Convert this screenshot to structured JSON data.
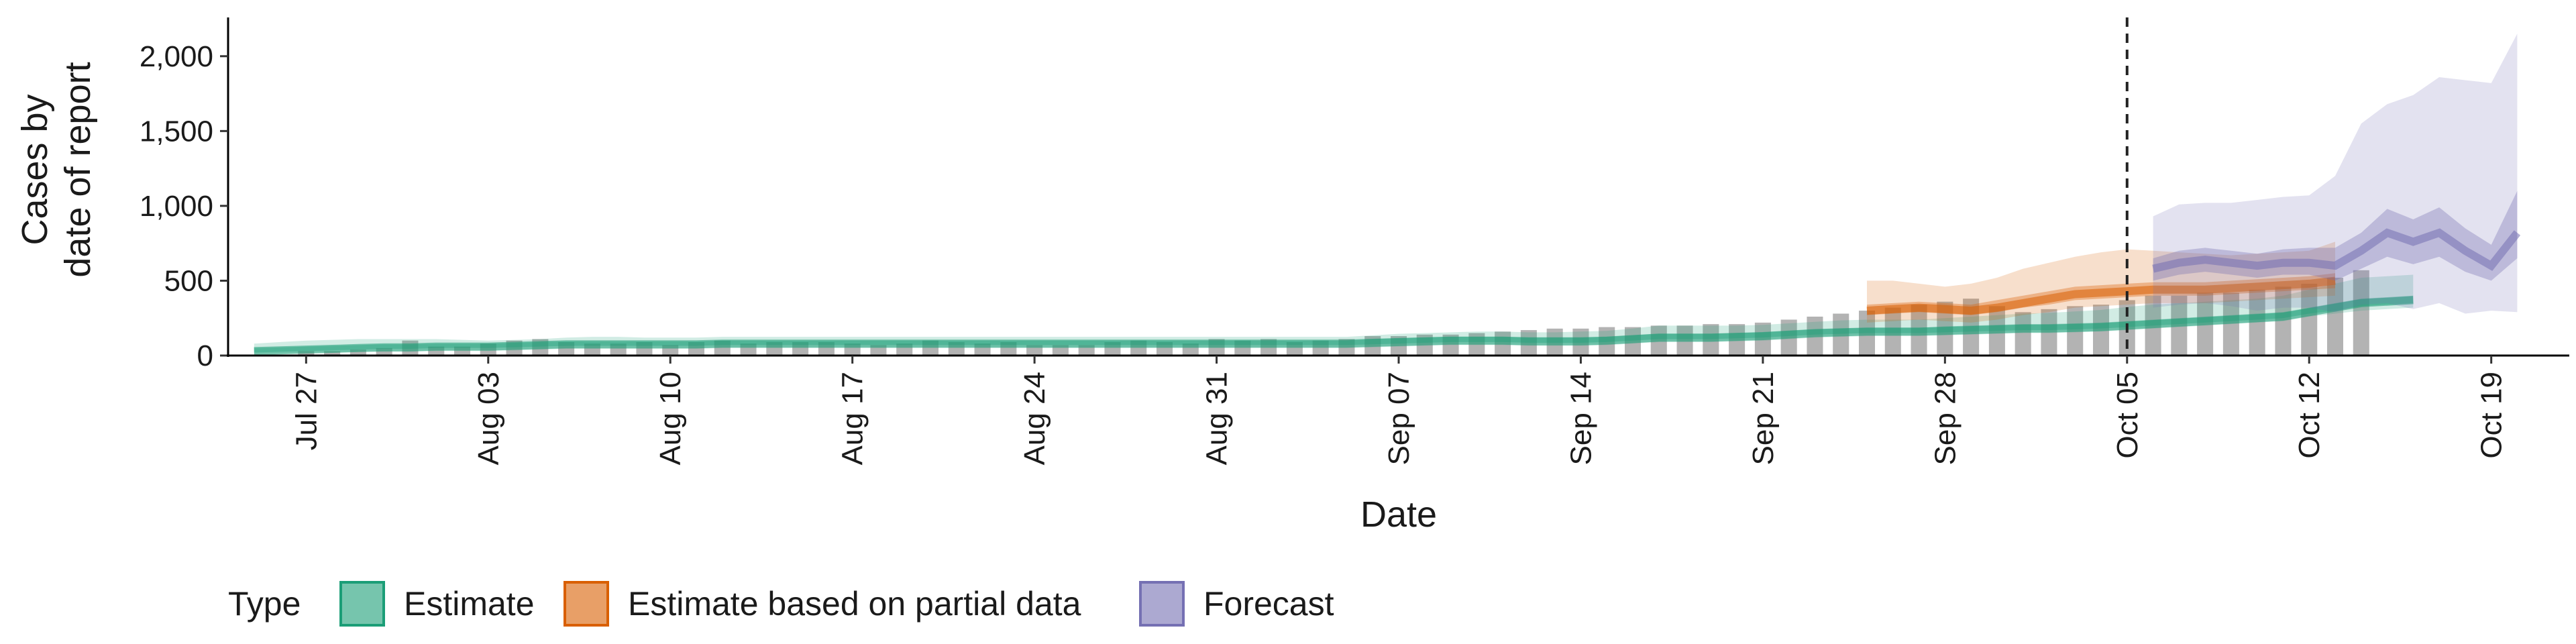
{
  "chart_data": {
    "type": "area",
    "xlabel": "Date",
    "ylabel_lines": [
      "Cases by",
      "date of report"
    ],
    "ylim": [
      0,
      2250
    ],
    "y_ticks": [
      0,
      500,
      1000,
      1500,
      2000
    ],
    "y_tick_labels": [
      "0",
      "500",
      "1,000",
      "1,500",
      "2,000"
    ],
    "x_range": [
      "2020-07-24",
      "2020-10-22"
    ],
    "x_ticks": [
      "2020-07-27",
      "2020-08-03",
      "2020-08-10",
      "2020-08-17",
      "2020-08-24",
      "2020-08-31",
      "2020-09-07",
      "2020-09-14",
      "2020-09-21",
      "2020-09-28",
      "2020-10-05",
      "2020-10-12",
      "2020-10-19"
    ],
    "x_tick_labels": [
      "Jul 27",
      "Aug 03",
      "Aug 10",
      "Aug 17",
      "Aug 24",
      "Aug 31",
      "Sep 07",
      "Sep 14",
      "Sep 21",
      "Sep 28",
      "Oct 05",
      "Oct 12",
      "Oct 19"
    ],
    "reference_line_date": "2020-10-05",
    "grid": false,
    "legend": {
      "position": "bottom",
      "title": "Type",
      "entries": [
        {
          "label": "Estimate",
          "color": "#1b9e77"
        },
        {
          "label": "Estimate based on partial data",
          "color": "#d95f02"
        },
        {
          "label": "Forecast",
          "color": "#7570b3"
        }
      ]
    },
    "reported_cases": {
      "start_date": "2020-07-27",
      "color": "#b3b3b3",
      "values": [
        30,
        30,
        40,
        50,
        100,
        60,
        60,
        80,
        100,
        110,
        90,
        80,
        80,
        90,
        70,
        90,
        100,
        80,
        90,
        90,
        90,
        80,
        70,
        80,
        100,
        90,
        80,
        90,
        70,
        70,
        70,
        90,
        100,
        90,
        80,
        110,
        100,
        110,
        90,
        100,
        110,
        130,
        130,
        140,
        140,
        150,
        160,
        170,
        180,
        180,
        190,
        190,
        200,
        200,
        210,
        210,
        220,
        240,
        260,
        280,
        300,
        320,
        340,
        360,
        380,
        330,
        290,
        310,
        330,
        340,
        370,
        400,
        400,
        420,
        420,
        440,
        460,
        480,
        520,
        570
      ]
    },
    "series": [
      {
        "name": "Estimate",
        "color": "#1b9e77",
        "start_date": "2020-07-25",
        "median": [
          30,
          35,
          40,
          45,
          50,
          55,
          55,
          60,
          60,
          60,
          65,
          70,
          75,
          75,
          75,
          75,
          75,
          75,
          80,
          80,
          80,
          80,
          80,
          80,
          80,
          80,
          80,
          80,
          80,
          80,
          80,
          80,
          80,
          80,
          80,
          80,
          80,
          80,
          80,
          80,
          80,
          80,
          80,
          85,
          90,
          95,
          100,
          100,
          100,
          95,
          95,
          95,
          100,
          110,
          120,
          120,
          120,
          125,
          130,
          140,
          150,
          155,
          160,
          160,
          160,
          165,
          170,
          175,
          180,
          180,
          185,
          190,
          200,
          210,
          220,
          230,
          240,
          250,
          260,
          290,
          320,
          350,
          360,
          370
        ],
        "lower_50": [
          20,
          25,
          30,
          35,
          40,
          45,
          45,
          50,
          50,
          50,
          55,
          60,
          65,
          65,
          65,
          65,
          65,
          65,
          70,
          70,
          70,
          70,
          70,
          70,
          70,
          70,
          70,
          70,
          70,
          70,
          70,
          70,
          70,
          70,
          70,
          70,
          70,
          70,
          70,
          70,
          70,
          70,
          70,
          75,
          80,
          85,
          90,
          90,
          90,
          85,
          85,
          85,
          90,
          100,
          110,
          110,
          110,
          115,
          120,
          130,
          140,
          145,
          150,
          150,
          150,
          155,
          160,
          165,
          170,
          170,
          175,
          180,
          190,
          200,
          210,
          220,
          230,
          240,
          250,
          280,
          300,
          330,
          340,
          350
        ],
        "upper_50": [
          50,
          55,
          60,
          65,
          70,
          75,
          75,
          80,
          80,
          80,
          85,
          90,
          95,
          95,
          95,
          95,
          95,
          95,
          100,
          100,
          100,
          100,
          100,
          100,
          100,
          100,
          100,
          100,
          100,
          100,
          100,
          100,
          100,
          100,
          100,
          100,
          100,
          100,
          100,
          100,
          100,
          100,
          100,
          110,
          115,
          120,
          125,
          125,
          125,
          120,
          120,
          120,
          125,
          135,
          145,
          145,
          145,
          150,
          155,
          165,
          175,
          180,
          185,
          185,
          185,
          195,
          200,
          205,
          210,
          210,
          215,
          220,
          230,
          240,
          250,
          260,
          270,
          280,
          290,
          320,
          350,
          380,
          390,
          400
        ],
        "lower_90": [
          10,
          15,
          20,
          20,
          25,
          25,
          25,
          30,
          30,
          30,
          35,
          40,
          45,
          45,
          45,
          45,
          45,
          45,
          50,
          50,
          50,
          50,
          50,
          50,
          50,
          50,
          50,
          50,
          50,
          50,
          50,
          50,
          50,
          50,
          50,
          50,
          50,
          50,
          50,
          50,
          50,
          50,
          50,
          55,
          60,
          65,
          70,
          70,
          70,
          65,
          65,
          65,
          70,
          80,
          90,
          90,
          90,
          95,
          100,
          110,
          120,
          125,
          130,
          130,
          130,
          135,
          140,
          145,
          150,
          150,
          155,
          160,
          170,
          180,
          190,
          200,
          210,
          220,
          230,
          260,
          280,
          300,
          310,
          320
        ],
        "upper_90": [
          80,
          90,
          100,
          105,
          110,
          110,
          110,
          110,
          105,
          100,
          105,
          110,
          120,
          125,
          125,
          120,
          120,
          120,
          125,
          125,
          125,
          125,
          125,
          125,
          125,
          125,
          125,
          125,
          125,
          125,
          125,
          125,
          125,
          125,
          125,
          125,
          125,
          125,
          125,
          125,
          125,
          125,
          125,
          135,
          145,
          150,
          155,
          160,
          160,
          155,
          155,
          160,
          165,
          180,
          200,
          200,
          200,
          200,
          205,
          215,
          225,
          235,
          240,
          240,
          240,
          250,
          260,
          270,
          280,
          285,
          295,
          305,
          325,
          340,
          350,
          360,
          370,
          380,
          400,
          440,
          480,
          520,
          530,
          540
        ]
      },
      {
        "name": "Estimate based on partial data",
        "color": "#d95f02",
        "start_date": "2020-09-25",
        "median": [
          300,
          310,
          320,
          310,
          300,
          320,
          350,
          380,
          410,
          420,
          430,
          440,
          440,
          440,
          450,
          460,
          470,
          480,
          500
        ],
        "lower_50": [
          270,
          280,
          290,
          280,
          270,
          290,
          320,
          340,
          370,
          380,
          390,
          400,
          400,
          400,
          410,
          420,
          430,
          440,
          450
        ],
        "upper_50": [
          340,
          350,
          360,
          350,
          340,
          370,
          400,
          430,
          460,
          470,
          480,
          490,
          490,
          490,
          500,
          510,
          520,
          530,
          550
        ],
        "lower_90": [
          220,
          230,
          240,
          230,
          220,
          240,
          270,
          290,
          320,
          330,
          340,
          350,
          350,
          350,
          360,
          370,
          380,
          390,
          400
        ],
        "upper_90": [
          500,
          500,
          480,
          460,
          480,
          520,
          580,
          620,
          660,
          690,
          710,
          700,
          690,
          680,
          670,
          680,
          690,
          700,
          760
        ]
      },
      {
        "name": "Forecast",
        "color": "#7570b3",
        "start_date": "2020-10-06",
        "median": [
          580,
          620,
          640,
          620,
          600,
          620,
          620,
          600,
          700,
          820,
          760,
          820,
          700,
          600,
          820
        ],
        "lower_50": [
          500,
          540,
          560,
          540,
          520,
          540,
          540,
          500,
          580,
          660,
          610,
          660,
          560,
          500,
          650
        ],
        "upper_50": [
          650,
          700,
          720,
          700,
          680,
          710,
          720,
          720,
          820,
          980,
          910,
          990,
          850,
          740,
          1100
        ],
        "lower_90": [
          320,
          340,
          350,
          330,
          300,
          320,
          320,
          290,
          340,
          350,
          310,
          350,
          280,
          300,
          290
        ],
        "upper_90": [
          930,
          1010,
          1020,
          1020,
          1040,
          1060,
          1070,
          1200,
          1550,
          1680,
          1740,
          1860,
          1840,
          1820,
          2150
        ]
      }
    ]
  }
}
